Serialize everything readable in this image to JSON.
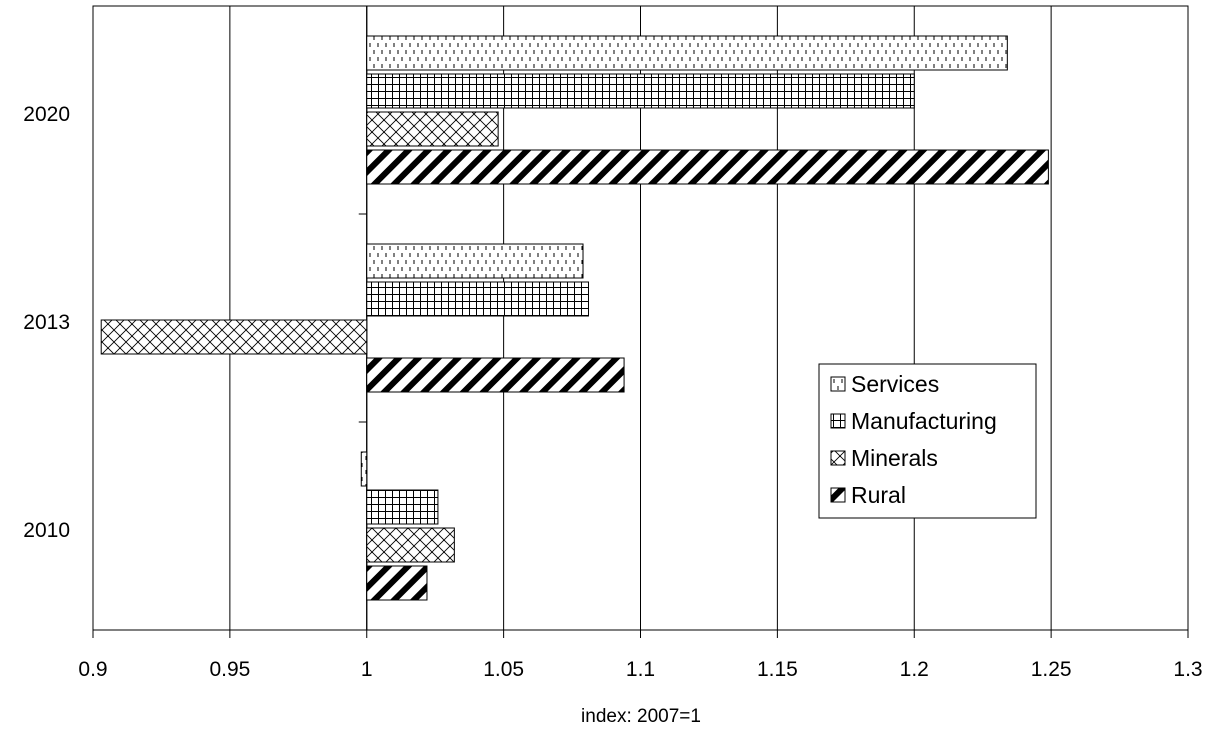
{
  "chart_data": {
    "type": "bar",
    "orientation": "horizontal",
    "title": "",
    "xlabel": "index: 2007=1",
    "ylabel": "",
    "xlim": [
      0.9,
      1.3
    ],
    "baseline": 1,
    "x_ticks": [
      "0.9",
      "0.95",
      "1",
      "1.05",
      "1.1",
      "1.15",
      "1.2",
      "1.25",
      "1.3"
    ],
    "categories": [
      "2010",
      "2013",
      "2020"
    ],
    "grid": "vertical",
    "legend_position": "right",
    "series": [
      {
        "name": "Services",
        "pattern": "dashed-stipple",
        "values": [
          0.998,
          1.079,
          1.234
        ]
      },
      {
        "name": "Manufacturing",
        "pattern": "grid",
        "values": [
          1.026,
          1.081,
          1.2
        ]
      },
      {
        "name": "Minerals",
        "pattern": "crosshatch",
        "values": [
          1.032,
          0.903,
          1.048
        ]
      },
      {
        "name": "Rural",
        "pattern": "diagonal-stripes",
        "values": [
          1.022,
          1.094,
          1.249
        ]
      }
    ],
    "colors": {
      "fill": "#ffffff",
      "ink": "#000000",
      "grid": "#000000"
    }
  }
}
